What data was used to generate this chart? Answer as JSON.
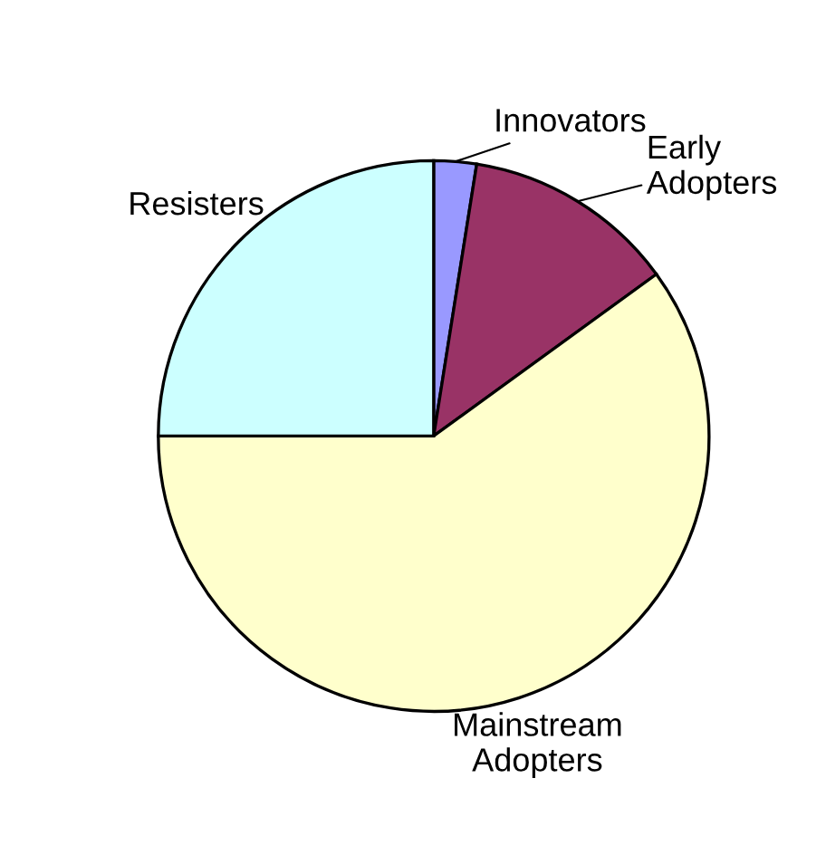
{
  "chart_data": {
    "type": "pie",
    "categories": [
      "Innovators",
      "Early\nAdopters",
      "Mainstream\nAdopters",
      "Resisters"
    ],
    "values": [
      2.5,
      12.5,
      60,
      25
    ],
    "colors": [
      "#9999ff",
      "#993366",
      "#ffffcc",
      "#ccffff"
    ],
    "legend": false
  }
}
